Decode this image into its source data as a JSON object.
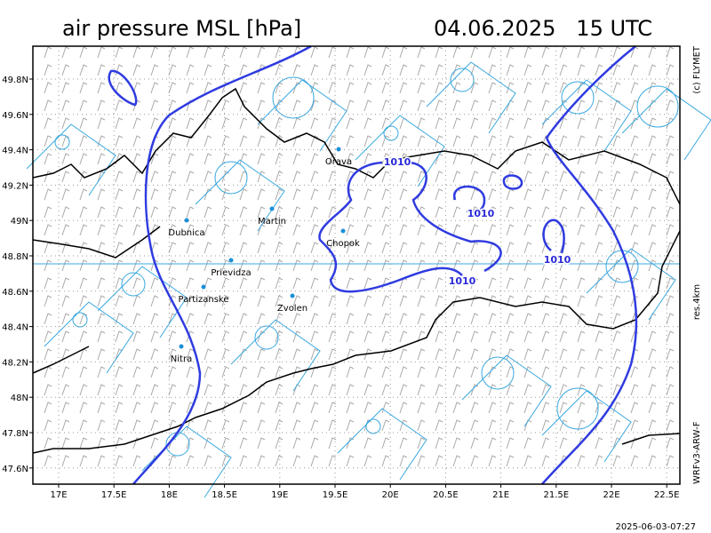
{
  "header": {
    "title": "air pressure MSL [hPa]",
    "datetime": "04.06.2025   15 UTC"
  },
  "side_labels": {
    "copyright": "(c) FLYMET",
    "resolution": "res.4km",
    "model": "WRFv3-ARW-F"
  },
  "footer": {
    "timestamp": "2025-06-03-07:27"
  },
  "map": {
    "lon_labels": [
      "17E",
      "17.5E",
      "18E",
      "18.5E",
      "19E",
      "19.5E",
      "20E",
      "20.5E",
      "21E",
      "21.5E",
      "22E",
      "22.5E"
    ],
    "lat_labels": [
      "49.8N",
      "49.6N",
      "49.4N",
      "49.2N",
      "49N",
      "48.8N",
      "48.6N",
      "48.4N",
      "48.2N",
      "48N",
      "47.8N",
      "47.6N"
    ],
    "cities": [
      "Orava",
      "Martin",
      "Dubnica",
      "Chopok",
      "Prievidza",
      "Partizanske",
      "Zvolen",
      "Nitra"
    ],
    "isobar_labels": [
      "1010",
      "1010",
      "1010",
      "1010"
    ]
  }
}
